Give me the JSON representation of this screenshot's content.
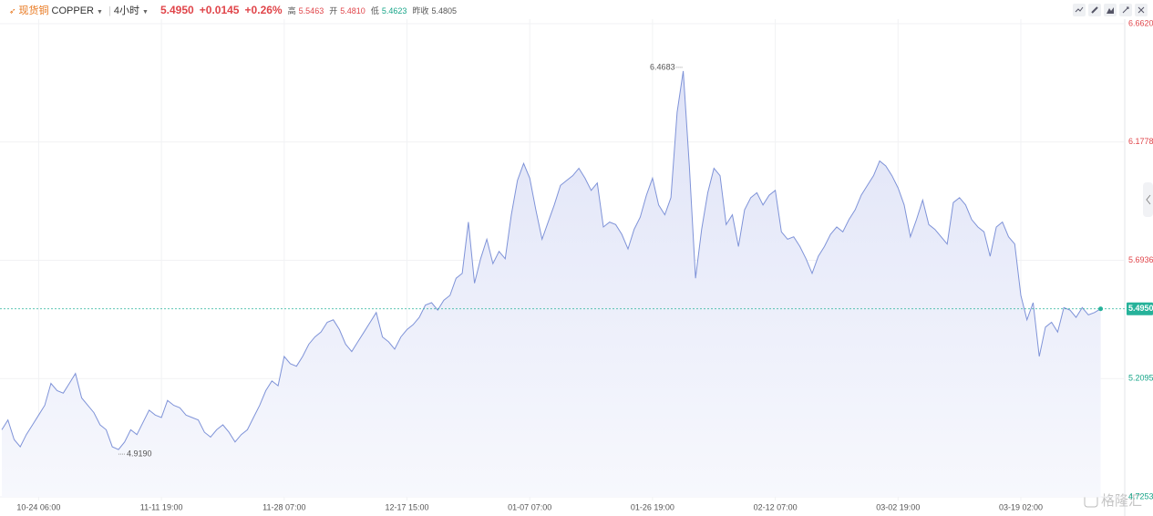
{
  "header": {
    "symbol_cn": "现货铜",
    "symbol": "COPPER",
    "interval": "4小时",
    "price": "5.4950",
    "change": "+0.0145",
    "change_pct": "+0.26%",
    "high_label": "高",
    "high": "5.5463",
    "open_label": "开",
    "open": "5.4810",
    "low_label": "低",
    "low": "5.4623",
    "prev_close_label": "昨收",
    "prev_close": "5.4805"
  },
  "watermark": "格隆汇",
  "chart_data": {
    "type": "area",
    "categories": [
      null,
      null,
      null,
      null,
      null,
      null,
      "10-24 06:00",
      null,
      null,
      null,
      null,
      null,
      null,
      null,
      null,
      null,
      null,
      null,
      null,
      null,
      null,
      null,
      null,
      null,
      null,
      null,
      "11-11 19:00",
      null,
      null,
      null,
      null,
      null,
      null,
      null,
      null,
      null,
      null,
      null,
      null,
      null,
      null,
      null,
      null,
      null,
      null,
      null,
      "11-28 07:00",
      null,
      null,
      null,
      null,
      null,
      null,
      null,
      null,
      null,
      null,
      null,
      null,
      null,
      null,
      null,
      null,
      null,
      null,
      null,
      "12-17 15:00",
      null,
      null,
      null,
      null,
      null,
      null,
      null,
      null,
      null,
      null,
      null,
      null,
      null,
      null,
      null,
      null,
      null,
      null,
      null,
      "01-07 07:00",
      null,
      null,
      null,
      null,
      null,
      null,
      null,
      null,
      null,
      null,
      null,
      null,
      null,
      null,
      null,
      null,
      null,
      null,
      null,
      "01-26 19:00",
      null,
      null,
      null,
      null,
      null,
      null,
      null,
      null,
      null,
      null,
      null,
      null,
      null,
      null,
      null,
      null,
      null,
      null,
      null,
      "02-12 07:00",
      null,
      null,
      null,
      null,
      null,
      null,
      null,
      null,
      null,
      null,
      null,
      null,
      null,
      null,
      null,
      null,
      null,
      null,
      null,
      "03-02 19:00",
      null,
      null,
      null,
      null,
      null,
      null,
      null,
      null,
      null,
      null,
      null,
      null,
      null,
      null,
      null,
      null,
      null,
      null,
      null,
      "03-19 02:00",
      null,
      null,
      null,
      null,
      null,
      null,
      null,
      null,
      null,
      null,
      null,
      null,
      null
    ],
    "series": [
      {
        "color": "#7f93d8",
        "fill": "#e6e9f8",
        "values": [
          5.0,
          5.04,
          4.96,
          4.93,
          4.98,
          5.02,
          5.06,
          5.1,
          5.19,
          5.16,
          5.15,
          5.19,
          5.23,
          5.13,
          5.1,
          5.07,
          5.02,
          5.0,
          4.93,
          4.919,
          4.95,
          5.0,
          4.98,
          5.03,
          5.08,
          5.06,
          5.05,
          5.12,
          5.1,
          5.09,
          5.06,
          5.05,
          5.04,
          4.99,
          4.97,
          5.0,
          5.02,
          4.99,
          4.95,
          4.98,
          5.0,
          5.05,
          5.1,
          5.16,
          5.2,
          5.18,
          5.3,
          5.27,
          5.26,
          5.3,
          5.35,
          5.38,
          5.4,
          5.44,
          5.45,
          5.41,
          5.35,
          5.32,
          5.36,
          5.4,
          5.44,
          5.48,
          5.38,
          5.36,
          5.33,
          5.38,
          5.41,
          5.43,
          5.46,
          5.51,
          5.52,
          5.49,
          5.53,
          5.55,
          5.62,
          5.64,
          5.85,
          5.6,
          5.7,
          5.78,
          5.68,
          5.73,
          5.7,
          5.88,
          6.02,
          6.09,
          6.03,
          5.9,
          5.78,
          5.85,
          5.92,
          6.0,
          6.02,
          6.04,
          6.07,
          6.03,
          5.98,
          6.01,
          5.83,
          5.85,
          5.84,
          5.8,
          5.74,
          5.82,
          5.87,
          5.96,
          6.03,
          5.92,
          5.88,
          5.95,
          6.3,
          6.4683,
          6.08,
          5.62,
          5.82,
          5.97,
          6.07,
          6.04,
          5.84,
          5.88,
          5.75,
          5.9,
          5.95,
          5.97,
          5.92,
          5.96,
          5.98,
          5.81,
          5.78,
          5.79,
          5.75,
          5.7,
          5.64,
          5.71,
          5.75,
          5.8,
          5.83,
          5.81,
          5.86,
          5.9,
          5.96,
          6.0,
          6.04,
          6.1,
          6.08,
          6.04,
          5.99,
          5.92,
          5.79,
          5.86,
          5.94,
          5.84,
          5.82,
          5.79,
          5.76,
          5.93,
          5.95,
          5.92,
          5.86,
          5.83,
          5.81,
          5.71,
          5.83,
          5.85,
          5.79,
          5.76,
          5.55,
          5.45,
          5.52,
          5.3,
          5.42,
          5.44,
          5.4,
          5.5,
          5.49,
          5.46,
          5.5,
          5.47,
          5.48,
          5.495
        ],
        "value_labels": [
          null,
          null,
          null,
          null,
          null,
          null,
          null,
          null,
          null,
          null,
          null,
          null,
          null,
          null,
          null,
          null,
          null,
          null,
          null,
          "4.9190",
          null,
          null,
          null,
          null,
          null,
          null,
          null,
          null,
          null,
          null,
          null,
          null,
          null,
          null,
          null,
          null,
          null,
          null,
          null,
          null,
          null,
          null,
          null,
          null,
          null,
          null,
          null,
          null,
          null,
          null,
          null,
          null,
          null,
          null,
          null,
          null,
          null,
          null,
          null,
          null,
          null,
          null,
          null,
          null,
          null,
          null,
          null,
          null,
          null,
          null,
          null,
          null,
          null,
          null,
          null,
          null,
          null,
          null,
          null,
          null,
          null,
          null,
          null,
          null,
          null,
          null,
          null,
          null,
          null,
          null,
          null,
          null,
          null,
          null,
          null,
          null,
          null,
          null,
          null,
          null,
          null,
          null,
          null,
          null,
          null,
          null,
          null,
          null,
          null,
          null,
          null,
          "6.4683",
          null,
          null,
          null,
          null,
          null,
          null,
          null,
          null,
          null,
          null,
          null,
          null,
          null,
          null,
          null,
          null,
          null,
          null,
          null,
          null,
          null,
          null,
          null,
          null,
          null,
          null,
          null,
          null,
          null,
          null,
          null,
          null,
          null,
          null,
          null,
          null,
          null,
          null,
          null,
          null,
          null,
          null,
          null,
          null,
          null,
          null,
          null,
          null,
          null,
          null,
          null,
          null,
          null,
          null,
          null,
          null,
          null,
          null,
          null,
          null,
          null,
          null,
          null,
          null,
          null,
          null,
          null,
          "5.4950"
        ]
      }
    ],
    "ylim": [
      4.7253,
      6.662
    ],
    "yticks": [
      4.7253,
      5.2095,
      5.6936,
      6.1778,
      {
        "value": 6.662,
        "label": "6.6620"
      }
    ],
    "up_color": "#e0454a",
    "down_color": "#17a589",
    "last_color": "#26b29a",
    "grid": true
  }
}
